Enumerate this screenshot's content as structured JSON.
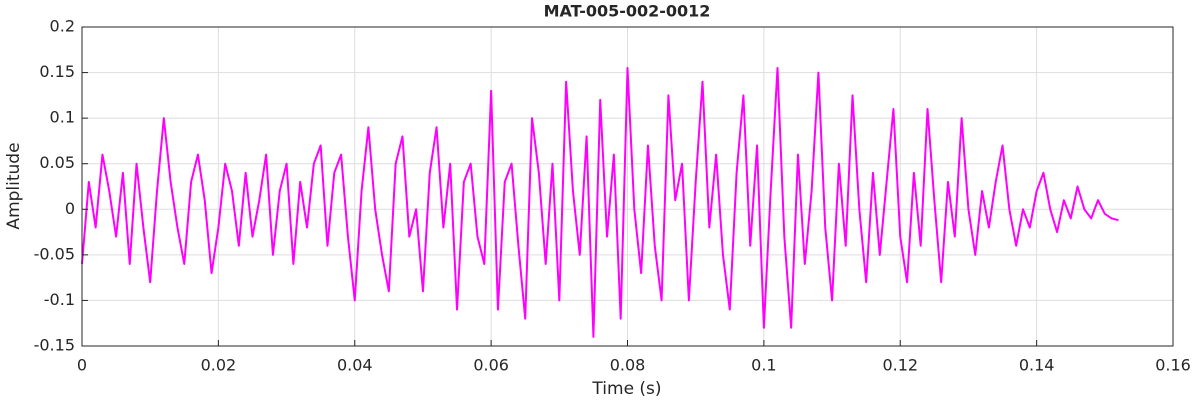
{
  "chart_data": {
    "type": "line",
    "title": "MAT-005-002-0012",
    "xlabel": "Time (s)",
    "ylabel": "Amplitude",
    "color": "#ff00ff",
    "grid": true,
    "xlim": [
      0,
      0.16
    ],
    "ylim": [
      -0.15,
      0.2
    ],
    "xticks": [
      0,
      0.02,
      0.04,
      0.06,
      0.08,
      0.1,
      0.12,
      0.14,
      0.16
    ],
    "yticks": [
      -0.15,
      -0.1,
      -0.05,
      0,
      0.05,
      0.1,
      0.15,
      0.2
    ],
    "x": [
      0,
      0.001,
      0.002,
      0.003,
      0.004,
      0.005,
      0.006,
      0.007,
      0.008,
      0.009,
      0.01,
      0.011,
      0.012,
      0.013,
      0.014,
      0.015,
      0.016,
      0.017,
      0.018,
      0.019,
      0.02,
      0.021,
      0.022,
      0.023,
      0.024,
      0.025,
      0.026,
      0.027,
      0.028,
      0.029,
      0.03,
      0.031,
      0.032,
      0.033,
      0.034,
      0.035,
      0.036,
      0.037,
      0.038,
      0.039,
      0.04,
      0.041,
      0.042,
      0.043,
      0.044,
      0.045,
      0.046,
      0.047,
      0.048,
      0.049,
      0.05,
      0.051,
      0.052,
      0.053,
      0.054,
      0.055,
      0.056,
      0.057,
      0.058,
      0.059,
      0.06,
      0.061,
      0.062,
      0.063,
      0.064,
      0.065,
      0.066,
      0.067,
      0.068,
      0.069,
      0.07,
      0.071,
      0.072,
      0.073,
      0.074,
      0.075,
      0.076,
      0.077,
      0.078,
      0.079,
      0.08,
      0.081,
      0.082,
      0.083,
      0.084,
      0.085,
      0.086,
      0.087,
      0.088,
      0.089,
      0.09,
      0.091,
      0.092,
      0.093,
      0.094,
      0.095,
      0.096,
      0.097,
      0.098,
      0.099,
      0.1,
      0.101,
      0.102,
      0.103,
      0.104,
      0.105,
      0.106,
      0.107,
      0.108,
      0.109,
      0.11,
      0.111,
      0.112,
      0.113,
      0.114,
      0.115,
      0.116,
      0.117,
      0.118,
      0.119,
      0.12,
      0.121,
      0.122,
      0.123,
      0.124,
      0.125,
      0.126,
      0.127,
      0.128,
      0.129,
      0.13,
      0.131,
      0.132,
      0.133,
      0.134,
      0.135,
      0.136,
      0.137,
      0.138,
      0.139,
      0.14,
      0.141,
      0.142,
      0.143,
      0.144,
      0.145,
      0.146,
      0.147,
      0.148,
      0.149,
      0.15,
      0.151,
      0.152
    ],
    "values": [
      -0.06,
      0.03,
      -0.02,
      0.06,
      0.02,
      -0.03,
      0.04,
      -0.06,
      0.05,
      -0.02,
      -0.08,
      0.02,
      0.1,
      0.03,
      -0.02,
      -0.06,
      0.03,
      0.06,
      0.01,
      -0.07,
      -0.02,
      0.05,
      0.02,
      -0.04,
      0.04,
      -0.03,
      0.01,
      0.06,
      -0.05,
      0.02,
      0.05,
      -0.06,
      0.03,
      -0.02,
      0.05,
      0.07,
      -0.04,
      0.04,
      0.06,
      -0.03,
      -0.1,
      0.02,
      0.09,
      0,
      -0.05,
      -0.09,
      0.05,
      0.08,
      -0.03,
      0,
      -0.09,
      0.04,
      0.09,
      -0.02,
      0.05,
      -0.11,
      0.03,
      0.05,
      -0.03,
      -0.06,
      0.13,
      -0.11,
      0.03,
      0.05,
      -0.04,
      -0.12,
      0.1,
      0.04,
      -0.06,
      0.05,
      -0.1,
      0.14,
      0.02,
      -0.05,
      0.08,
      -0.14,
      0.12,
      -0.03,
      0.06,
      -0.12,
      0.155,
      0,
      -0.07,
      0.07,
      -0.04,
      -0.1,
      0.125,
      0.01,
      0.05,
      -0.1,
      0.03,
      0.14,
      -0.02,
      0.06,
      -0.05,
      -0.11,
      0.04,
      0.125,
      -0.04,
      0.07,
      -0.13,
      0.02,
      0.155,
      -0.03,
      -0.13,
      0.06,
      -0.06,
      0.02,
      0.15,
      -0.02,
      -0.1,
      0.05,
      -0.04,
      0.125,
      0,
      -0.08,
      0.04,
      -0.05,
      0.03,
      0.11,
      -0.03,
      -0.08,
      0.04,
      -0.04,
      0.11,
      0.01,
      -0.08,
      0.03,
      -0.03,
      0.1,
      0,
      -0.05,
      0.02,
      -0.02,
      0.03,
      0.07,
      0,
      -0.04,
      0,
      -0.02,
      0.02,
      0.04,
      0,
      -0.025,
      0.01,
      -0.01,
      0.025,
      0,
      -0.01,
      0.01,
      -0.005,
      -0.01,
      -0.012
    ]
  }
}
